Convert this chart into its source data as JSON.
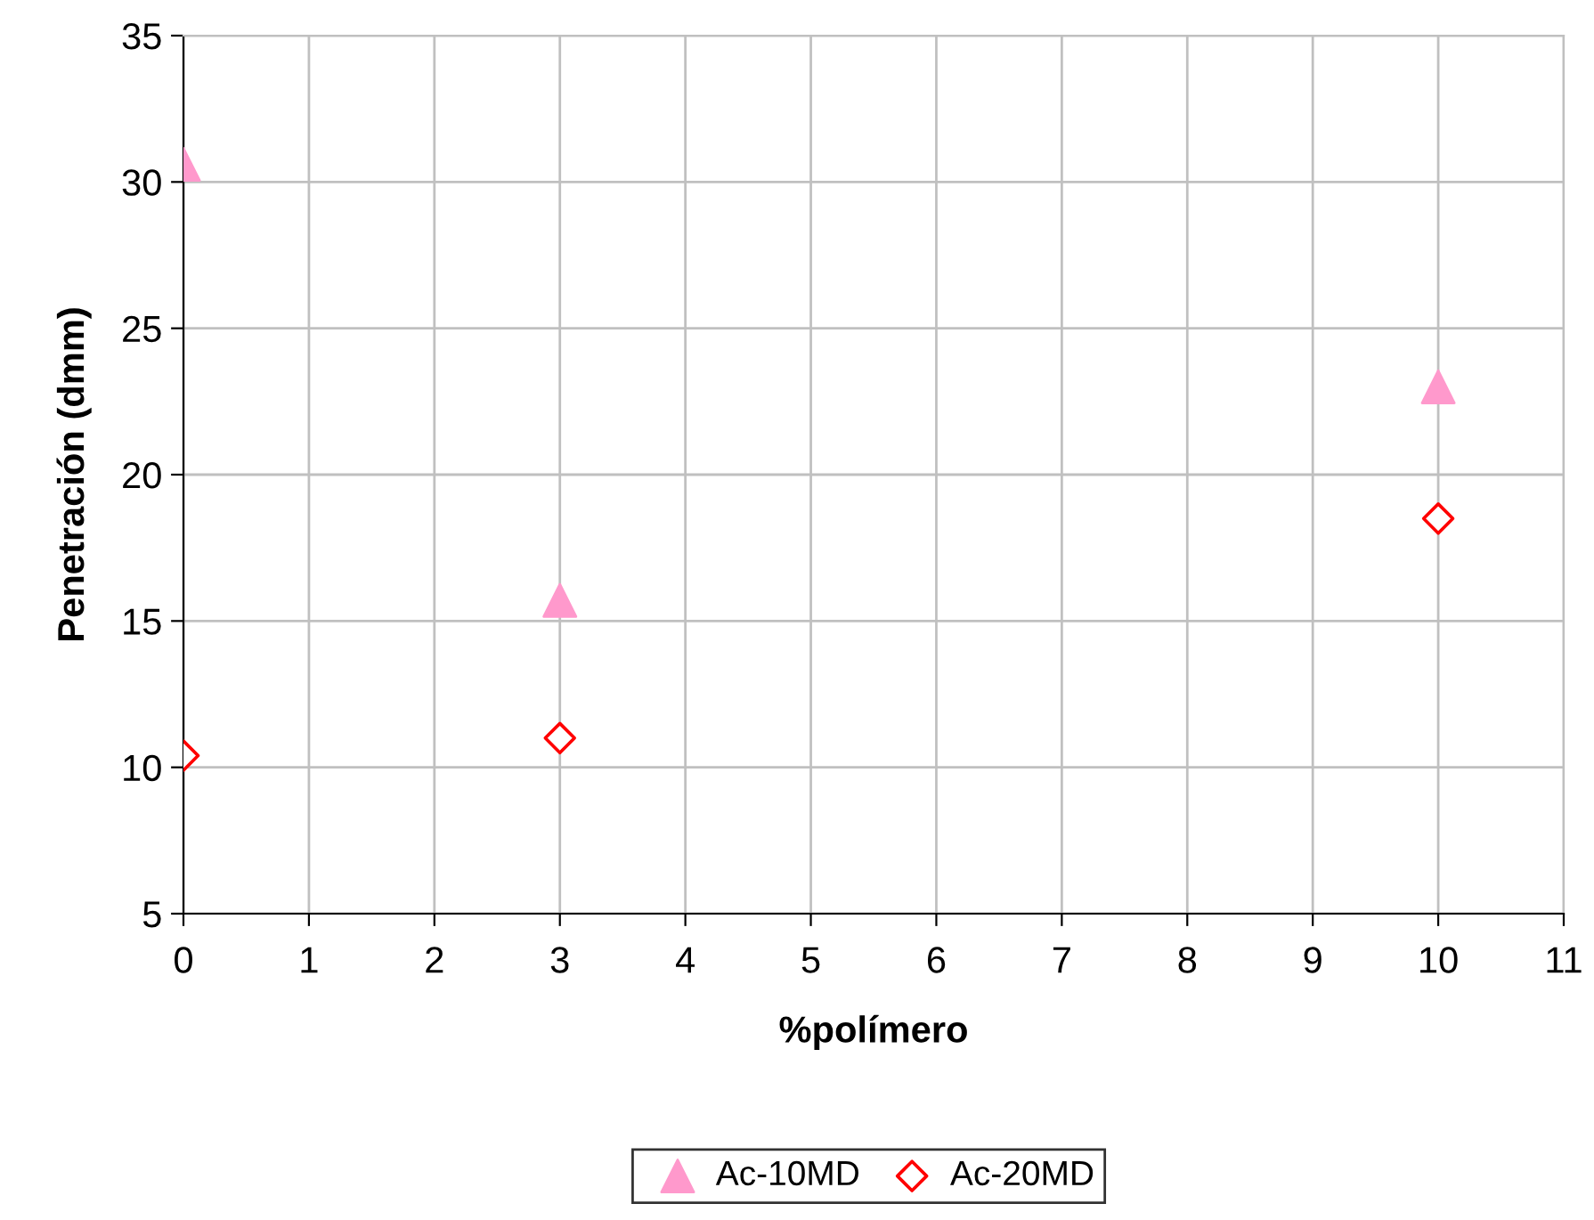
{
  "chart_data": {
    "type": "scatter",
    "xlabel": "%polímero",
    "ylabel": "Penetración (dmm)",
    "x": [
      0,
      3,
      10
    ],
    "series": [
      {
        "name": "Ac-10MD",
        "color": "#ff99cc",
        "marker": "triangle",
        "values": [
          30.6,
          15.7,
          23.0
        ]
      },
      {
        "name": "Ac-20MD",
        "color": "#ff0000",
        "marker": "diamond",
        "values": [
          10.4,
          11.0,
          18.5
        ]
      }
    ],
    "xlim": [
      0,
      11
    ],
    "xticks": [
      0,
      1,
      2,
      3,
      4,
      5,
      6,
      7,
      8,
      9,
      10,
      11
    ],
    "ylim": [
      5,
      35
    ],
    "yticks": [
      5,
      10,
      15,
      20,
      25,
      30,
      35
    ],
    "grid": true,
    "legend": "bottom"
  }
}
